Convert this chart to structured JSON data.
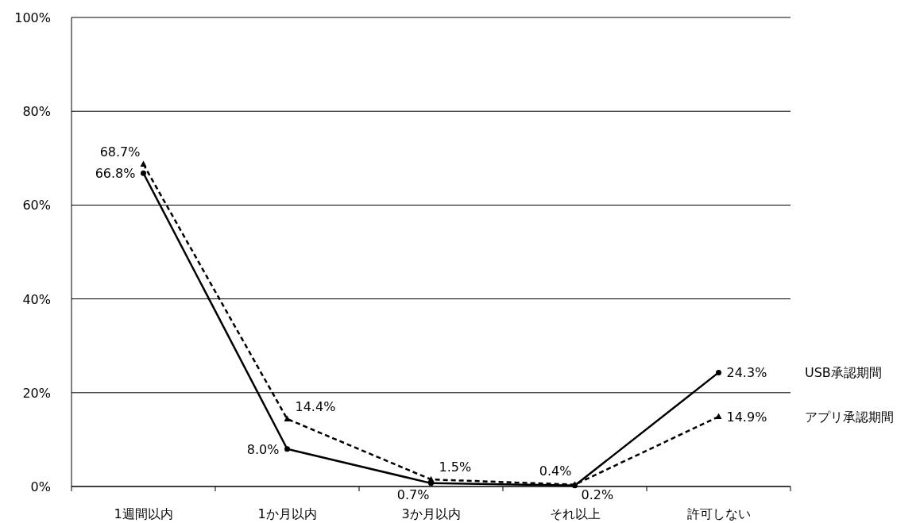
{
  "chart_data": {
    "type": "line",
    "categories": [
      "1週間以内",
      "1か月以内",
      "3か月以内",
      "それ以上",
      "許可しない"
    ],
    "series": [
      {
        "name": "USB承認期間",
        "color": "#000000",
        "marker": "circle",
        "line_style": "solid",
        "values": [
          66.8,
          8.0,
          0.7,
          0.2,
          24.3
        ],
        "value_labels": [
          "66.8%",
          "8.0%",
          "0.7%",
          "0.2%",
          "24.3%"
        ]
      },
      {
        "name": "アプリ承認期間",
        "color": "#000000",
        "marker": "triangle",
        "line_style": "dashed",
        "values": [
          68.7,
          14.4,
          1.5,
          0.4,
          14.9
        ],
        "value_labels": [
          "68.7%",
          "14.4%",
          "1.5%",
          "0.4%",
          "14.9%"
        ]
      }
    ],
    "ylim": [
      0,
      100
    ],
    "yticks": [
      {
        "value": 0,
        "label": "0%"
      },
      {
        "value": 20,
        "label": "20%"
      },
      {
        "value": 40,
        "label": "40%"
      },
      {
        "value": 60,
        "label": "60%"
      },
      {
        "value": 80,
        "label": "80%"
      },
      {
        "value": 100,
        "label": "100%"
      }
    ],
    "grid": "y",
    "legend": false
  }
}
